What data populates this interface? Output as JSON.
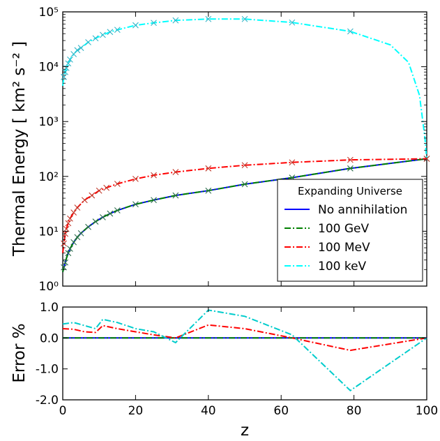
{
  "chart_data": [
    {
      "type": "line",
      "panel": "top",
      "ylabel": "Thermal Energy [ km² s⁻² ]",
      "yscale": "log",
      "xlim": [
        0,
        100
      ],
      "ylim": [
        1,
        100000
      ],
      "x_ticks": [
        "0",
        "20",
        "40",
        "60",
        "80",
        "100"
      ],
      "y_ticks": [
        "10⁰",
        "10¹",
        "10²",
        "10³",
        "10⁴",
        "10⁵"
      ],
      "legend": {
        "title": "Expanding Universe",
        "position": "lower-right"
      },
      "series": [
        {
          "name": "No annihilation",
          "color": "#0000ff",
          "style": "solid",
          "x": [
            0,
            0.3,
            0.7,
            1,
            1.5,
            2,
            3,
            4,
            5,
            7,
            9,
            11,
            13,
            15,
            20,
            25,
            31,
            40,
            50,
            63,
            79,
            100
          ],
          "y": [
            1.8,
            2.2,
            2.7,
            3.2,
            4.0,
            4.8,
            6.3,
            7.8,
            9.2,
            12,
            15,
            18,
            21,
            24,
            31,
            37,
            45,
            55,
            72,
            95,
            140,
            210
          ]
        },
        {
          "name": "100 GeV",
          "color": "#008000",
          "style": "dashdot",
          "x": [
            0,
            0.3,
            0.7,
            1,
            1.5,
            2,
            3,
            4,
            5,
            7,
            9,
            11,
            13,
            15,
            20,
            25,
            31,
            40,
            50,
            63,
            79,
            100
          ],
          "y": [
            1.8,
            2.2,
            2.7,
            3.2,
            4.0,
            4.8,
            6.3,
            7.8,
            9.2,
            12,
            15,
            18,
            21,
            24,
            31,
            37,
            45,
            55,
            72,
            95,
            140,
            210
          ]
        },
        {
          "name": "100 MeV",
          "color": "#ff0000",
          "style": "dashdot",
          "x": [
            0,
            0.3,
            0.7,
            1,
            1.5,
            2,
            3,
            4,
            6,
            8,
            10,
            12,
            15,
            20,
            25,
            31,
            40,
            50,
            63,
            79,
            100
          ],
          "y": [
            4,
            6,
            9,
            11,
            14,
            17,
            22,
            27,
            37,
            45,
            55,
            62,
            73,
            90,
            105,
            120,
            140,
            160,
            180,
            200,
            210
          ]
        },
        {
          "name": "100 keV",
          "color": "#00ffff",
          "style": "dashdot",
          "x": [
            0,
            0.3,
            0.7,
            1,
            1.5,
            2,
            3,
            4,
            5,
            7,
            9,
            11,
            13,
            15,
            20,
            25,
            31,
            40,
            50,
            63,
            79,
            90,
            95,
            98,
            99.5,
            100
          ],
          "y": [
            4500,
            6500,
            8000,
            9500,
            11500,
            13500,
            17000,
            20000,
            22000,
            28000,
            33000,
            38000,
            43000,
            47000,
            57000,
            63000,
            70000,
            74000,
            74000,
            64000,
            44000,
            25000,
            12000,
            3000,
            500,
            200
          ]
        }
      ],
      "markers": [
        {
          "x": [
            0.3,
            0.7,
            1.5,
            2,
            3,
            4,
            5,
            7,
            9,
            11,
            13,
            15,
            20,
            25,
            31,
            40,
            50,
            63,
            79,
            100
          ],
          "y": [
            2.2,
            2.7,
            4.0,
            4.8,
            6.3,
            7.8,
            9.2,
            12,
            15,
            18,
            21,
            24,
            31,
            37,
            45,
            55,
            72,
            95,
            140,
            210
          ]
        },
        {
          "x": [
            0.3,
            0.7,
            1,
            1.5,
            2,
            3,
            4,
            6,
            8,
            10,
            12,
            15,
            20,
            25,
            31,
            40,
            50,
            63,
            79,
            100
          ],
          "y": [
            6,
            9,
            11,
            14,
            17,
            22,
            27,
            37,
            45,
            55,
            62,
            73,
            90,
            105,
            120,
            140,
            160,
            180,
            200,
            210
          ]
        },
        {
          "x": [
            0.3,
            0.7,
            1,
            1.5,
            2,
            3,
            4,
            5,
            7,
            9,
            11,
            13,
            15,
            20,
            25,
            31,
            40,
            50,
            63,
            79
          ],
          "y": [
            6500,
            8000,
            9500,
            11500,
            13500,
            17000,
            20000,
            22000,
            28000,
            33000,
            38000,
            43000,
            47000,
            57000,
            63000,
            70000,
            74000,
            74000,
            64000,
            44000
          ]
        }
      ]
    },
    {
      "type": "line",
      "panel": "bottom",
      "xlabel": "z",
      "ylabel": "Error %",
      "xlim": [
        0,
        100
      ],
      "ylim": [
        -2.0,
        1.0
      ],
      "x_ticks": [
        "0",
        "20",
        "40",
        "60",
        "80",
        "100"
      ],
      "y_ticks": [
        "-2.0",
        "-1.0",
        "0.0",
        "1.0"
      ],
      "series": [
        {
          "name": "No annihilation",
          "color": "#0000ff",
          "style": "solid",
          "x": [
            0,
            100
          ],
          "y": [
            0,
            0
          ]
        },
        {
          "name": "100 GeV",
          "color": "#008000",
          "style": "dashdot",
          "x": [
            0,
            100
          ],
          "y": [
            0,
            0
          ]
        },
        {
          "name": "100 MeV",
          "color": "#ff0000",
          "style": "dashdot",
          "x": [
            0,
            3,
            6,
            9,
            11,
            15,
            20,
            25,
            31,
            40,
            50,
            63,
            79,
            100
          ],
          "y": [
            0.3,
            0.28,
            0.2,
            0.18,
            0.4,
            0.3,
            0.2,
            0.1,
            0.0,
            0.42,
            0.3,
            0.0,
            -0.4,
            0.0
          ]
        },
        {
          "name": "100 keV",
          "color": "#00cccc",
          "style": "dashdot",
          "x": [
            0,
            3,
            6,
            9,
            11,
            15,
            20,
            25,
            31,
            40,
            50,
            63,
            79,
            100
          ],
          "y": [
            0.45,
            0.5,
            0.4,
            0.3,
            0.6,
            0.5,
            0.3,
            0.2,
            -0.15,
            0.9,
            0.7,
            0.1,
            -1.7,
            0.0
          ]
        }
      ]
    }
  ]
}
